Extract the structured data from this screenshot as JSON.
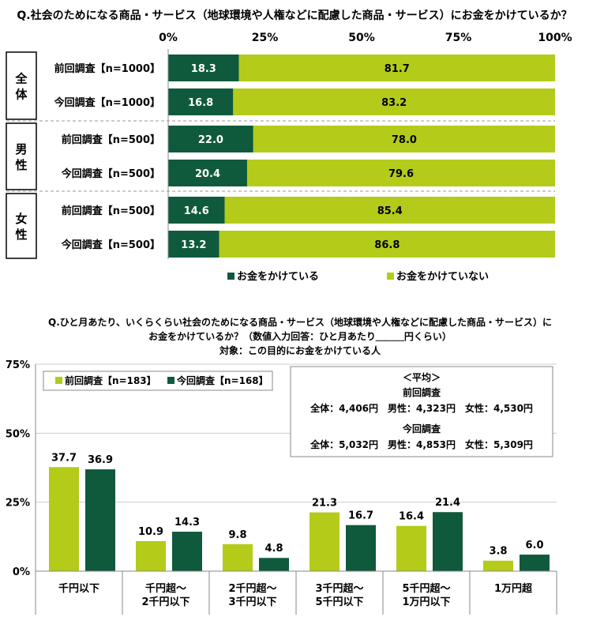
{
  "colors": {
    "prev": "#0f5a3c",
    "curr": "#b4cb1a"
  },
  "chart_data": [
    {
      "type": "bar",
      "orientation": "horizontal-stacked",
      "title": "Q.社会のためになる商品・サービス（地球環境や人権などに配慮した商品・サービス）にお金をかけているか？",
      "xlim": [
        0,
        100
      ],
      "ticks": [
        "0%",
        "25%",
        "50%",
        "75%",
        "100%"
      ],
      "groups": [
        {
          "label": "全体",
          "rows": [
            0,
            1
          ]
        },
        {
          "label": "男性",
          "rows": [
            2,
            3
          ]
        },
        {
          "label": "女性",
          "rows": [
            4,
            5
          ]
        }
      ],
      "categories": [
        "前回調査【n=1000】",
        "今回調査【n=1000】",
        "前回調査【n=500】",
        "今回調査【n=500】",
        "前回調査【n=500】",
        "今回調査【n=500】"
      ],
      "series": [
        {
          "name": "お金をかけている",
          "color": "#0f5a3c",
          "values": [
            18.3,
            16.8,
            22.0,
            20.4,
            14.6,
            13.2
          ]
        },
        {
          "name": "お金をかけていない",
          "color": "#b4cb1a",
          "values": [
            81.7,
            83.2,
            78.0,
            79.6,
            85.4,
            86.8
          ]
        }
      ],
      "legend": "bottom"
    },
    {
      "type": "bar",
      "title_lines": [
        "Q.ひと月あたり、いくらくらい社会のためになる商品・サービス（地球環境や人権などに配慮した商品・サービス）に",
        "お金をかけているか？（数値入力回答：ひと月あたり＿＿＿円くらい）",
        "対象：この目的にお金をかけている人"
      ],
      "ylim": [
        0,
        75
      ],
      "yticks": [
        "0%",
        "25%",
        "50%",
        "75%"
      ],
      "categories": [
        [
          "千円以下"
        ],
        [
          "千円超～",
          "2千円以下"
        ],
        [
          "2千円超～",
          "3千円以下"
        ],
        [
          "3千円超～",
          "5千円以下"
        ],
        [
          "5千円超～",
          "1万円以下"
        ],
        [
          "1万円超"
        ]
      ],
      "series": [
        {
          "name": "前回調査【n=183】",
          "color": "#b4cb1a",
          "values": [
            37.7,
            10.9,
            9.8,
            21.3,
            16.4,
            3.8
          ]
        },
        {
          "name": "今回調査【n=168】",
          "color": "#0f5a3c",
          "values": [
            36.9,
            14.3,
            4.8,
            16.7,
            21.4,
            6.0
          ]
        }
      ],
      "legend": "top-left",
      "average_box": {
        "title": "＜平均＞",
        "prev_label": "前回調査",
        "prev_values": "全体：4,406円　男性：4,323円　女性：4,530円",
        "curr_label": "今回調査",
        "curr_values": "全体：5,032円　男性：4,853円　女性：5,309円"
      }
    }
  ]
}
